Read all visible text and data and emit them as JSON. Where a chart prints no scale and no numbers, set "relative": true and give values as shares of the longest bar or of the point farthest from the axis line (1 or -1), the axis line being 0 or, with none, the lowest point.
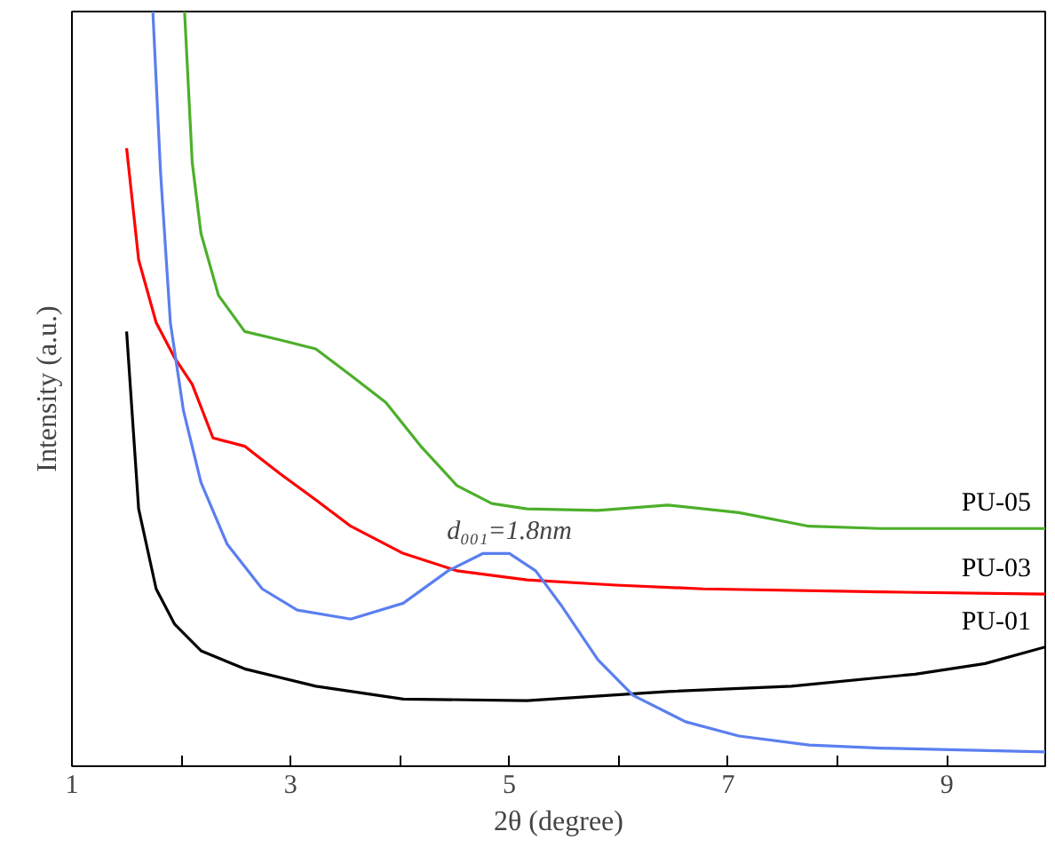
{
  "chart_data": {
    "type": "line",
    "xlabel": "2θ (degree)",
    "ylabel": "Intensity (a.u.)",
    "relative": true,
    "grid": false,
    "line_style": "solid",
    "marker": "none",
    "xlim": [
      1,
      9.9
    ],
    "xticks": [
      1,
      {
        "value": 2,
        "label": null
      },
      3,
      {
        "value": 4,
        "label": null
      },
      5,
      {
        "value": 6,
        "label": null
      },
      7,
      {
        "value": 8,
        "label": null
      },
      9
    ],
    "annotations": [
      {
        "text": "d₀₀₁=1.8nm",
        "x": 5.0,
        "y": 0.282
      }
    ],
    "series": [
      {
        "name": "PU-01",
        "color": "#000000",
        "x": [
          1.5,
          1.61,
          1.77,
          1.94,
          2.18,
          2.58,
          3.23,
          4.03,
          5.16,
          6.45,
          7.58,
          8.71,
          9.35,
          9.9
        ],
        "values": [
          0.576,
          0.341,
          0.235,
          0.188,
          0.153,
          0.129,
          0.106,
          0.089,
          0.087,
          0.099,
          0.106,
          0.122,
          0.136,
          0.158
        ]
      },
      {
        "name": "PU-03",
        "color": "#ff0000",
        "x": [
          1.5,
          1.61,
          1.77,
          1.94,
          2.1,
          2.29,
          2.58,
          2.9,
          3.23,
          3.55,
          4.03,
          4.52,
          5.16,
          5.97,
          6.77,
          8.39,
          9.9
        ],
        "values": [
          0.819,
          0.671,
          0.588,
          0.541,
          0.506,
          0.435,
          0.424,
          0.388,
          0.353,
          0.318,
          0.282,
          0.259,
          0.247,
          0.24,
          0.235,
          0.231,
          0.228
        ]
      },
      {
        "color": "#5b7ff0",
        "x": [
          1.74,
          1.81,
          1.9,
          2.02,
          2.18,
          2.42,
          2.74,
          3.06,
          3.55,
          4.03,
          4.44,
          4.76,
          5.0,
          5.24,
          5.48,
          5.81,
          6.13,
          6.61,
          7.1,
          7.74,
          8.39,
          9.9
        ],
        "values": [
          1.0,
          0.788,
          0.588,
          0.471,
          0.376,
          0.294,
          0.235,
          0.207,
          0.195,
          0.216,
          0.259,
          0.282,
          0.282,
          0.259,
          0.212,
          0.141,
          0.094,
          0.059,
          0.04,
          0.028,
          0.024,
          0.019
        ]
      },
      {
        "name": "PU-05",
        "color": "#4caf2a",
        "x": [
          2.03,
          2.1,
          2.18,
          2.34,
          2.58,
          2.9,
          3.23,
          3.55,
          3.87,
          4.19,
          4.52,
          4.84,
          5.16,
          5.81,
          6.45,
          7.1,
          7.74,
          8.39,
          9.9
        ],
        "values": [
          1.0,
          0.8,
          0.706,
          0.624,
          0.576,
          0.565,
          0.553,
          0.518,
          0.482,
          0.424,
          0.372,
          0.348,
          0.341,
          0.339,
          0.346,
          0.336,
          0.318,
          0.315,
          0.315
        ]
      }
    ]
  }
}
